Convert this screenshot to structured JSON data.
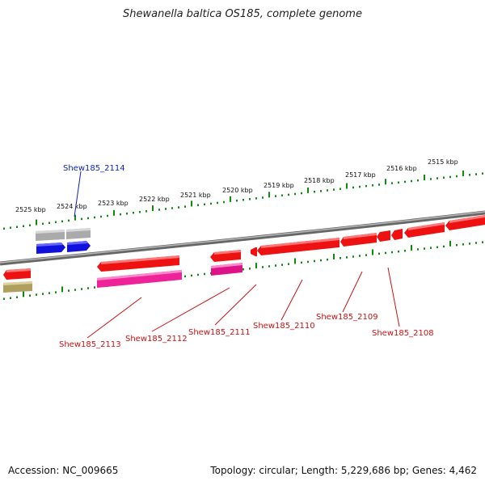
{
  "title": "Shewanella baltica OS185, complete genome",
  "footer": {
    "accession": "Accession: NC_009665",
    "summary": "Topology: circular; Length: 5,229,686 bp; Genes: 4,462"
  },
  "colors": {
    "backbone": "#888888",
    "tick": "#118811",
    "cds": "#ee1111",
    "rna_like": "#ee2299",
    "blue_feature": "#1111dd",
    "gray_feature": "#aaaaaa",
    "olive_feature": "#b0a060",
    "label_red": "#cc1111",
    "label_blue": "#1122bb"
  },
  "scale_labels": [
    "2525 kbp",
    "2524 kbp",
    "2523 kbp",
    "2522 kbp",
    "2521 kbp",
    "2520 kbp",
    "2519 kbp",
    "2518 kbp",
    "2517 kbp",
    "2516 kbp",
    "2515 kbp"
  ],
  "gene_labels": {
    "g2114": "Shew185_2114",
    "g2113": "Shew185_2113",
    "g2112": "Shew185_2112",
    "g2111": "Shew185_2111",
    "g2110": "Shew185_2110",
    "g2109": "Shew185_2109",
    "g2108": "Shew185_2108"
  }
}
